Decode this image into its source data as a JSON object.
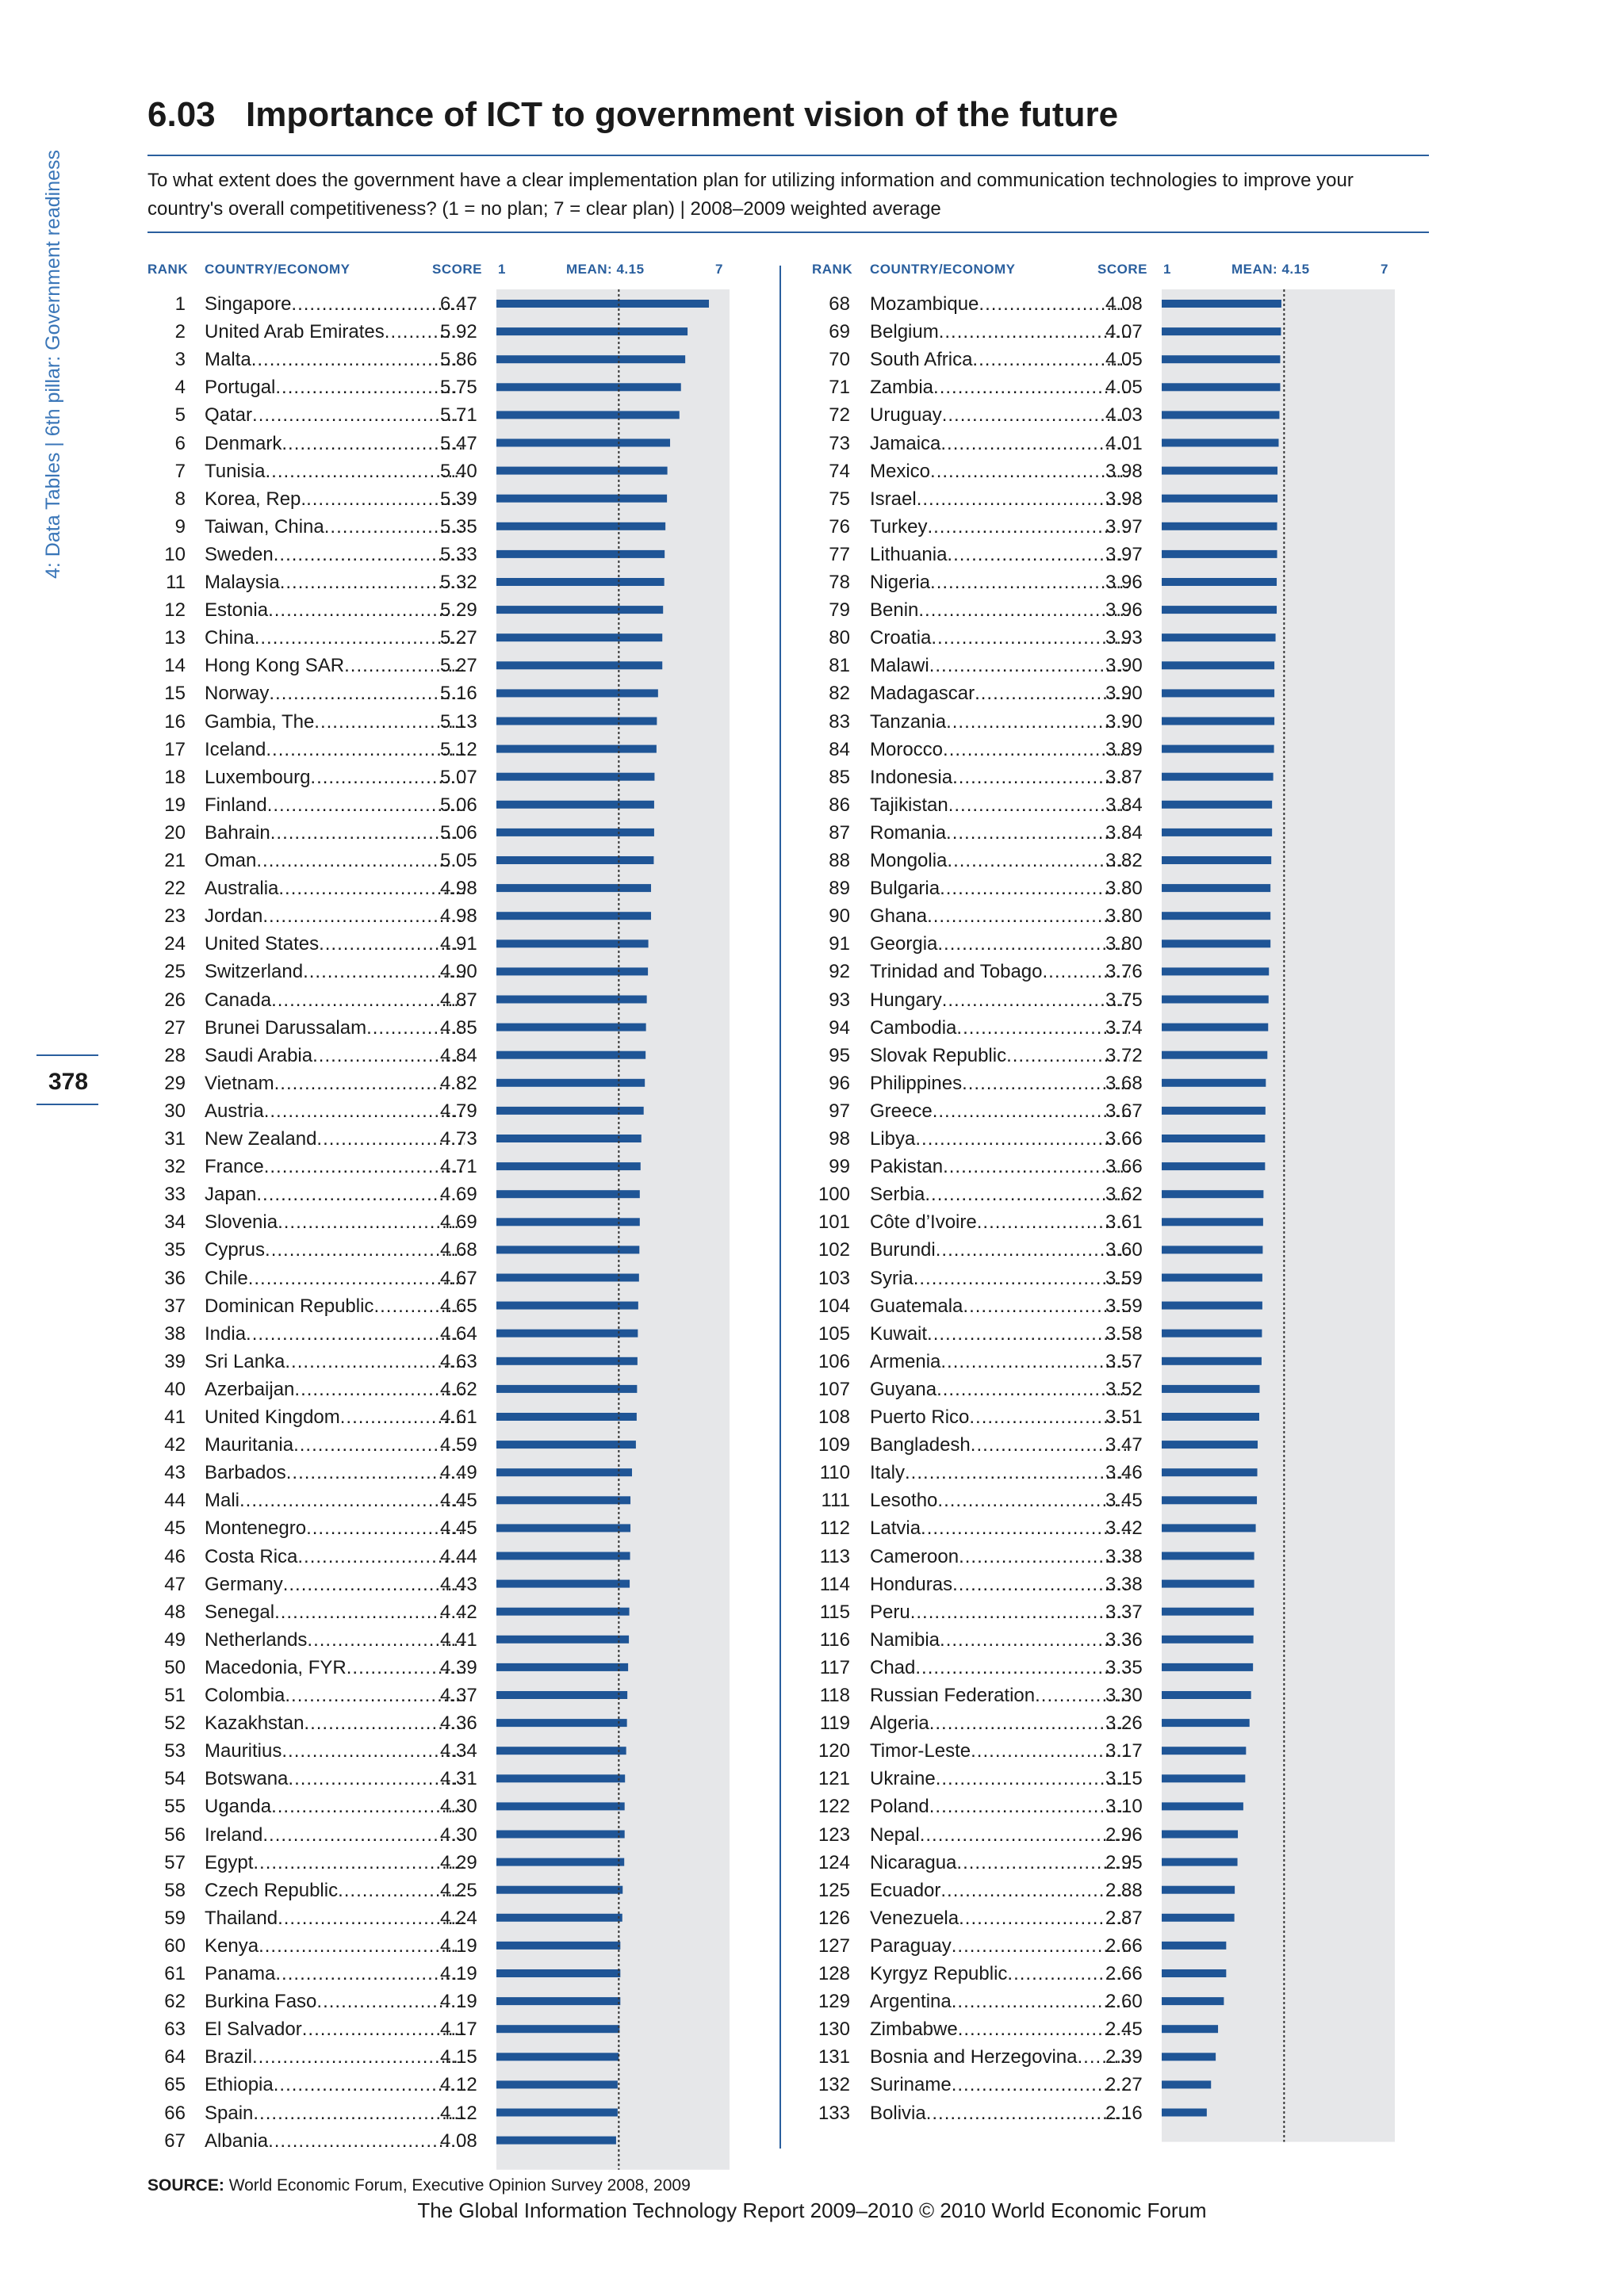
{
  "sidebar": {
    "label": "4: Data Tables  |  6th pillar: Government readiness"
  },
  "page": {
    "number": "378"
  },
  "header": {
    "section_number": "6.03",
    "title": "Importance of ICT to government vision of the future",
    "question": "To what extent does the government have a clear implementation plan for utilizing information and communication technologies to improve your country's overall competitiveness? (1 = no plan; 7 = clear plan)  |  2008–2009 weighted average"
  },
  "columns": {
    "rank": "RANK",
    "country": "COUNTRY/ECONOMY",
    "score": "SCORE",
    "scale_min": "1",
    "mean": "MEAN: 4.15",
    "scale_max": "7"
  },
  "source": {
    "label": "SOURCE:",
    "text": "World Economic Forum, Executive Opinion Survey 2008, 2009"
  },
  "footer": {
    "text": "The Global Information Technology Report 2009–2010 © 2010 World Economic Forum"
  },
  "colors": {
    "bar": "#1f5596",
    "track": "#e6e7e9",
    "mean_line": "#333333",
    "accent": "#2a5f9e"
  },
  "chart_data": {
    "type": "bar",
    "orientation": "horizontal",
    "xlim": [
      1,
      7
    ],
    "mean": 4.15,
    "grid": false,
    "left_column": [
      {
        "rank": 1,
        "country": "Singapore",
        "score": 6.47
      },
      {
        "rank": 2,
        "country": "United Arab Emirates",
        "score": 5.92
      },
      {
        "rank": 3,
        "country": "Malta",
        "score": 5.86
      },
      {
        "rank": 4,
        "country": "Portugal",
        "score": 5.75
      },
      {
        "rank": 5,
        "country": "Qatar",
        "score": 5.71
      },
      {
        "rank": 6,
        "country": "Denmark",
        "score": 5.47
      },
      {
        "rank": 7,
        "country": "Tunisia",
        "score": 5.4
      },
      {
        "rank": 8,
        "country": "Korea, Rep.",
        "score": 5.39
      },
      {
        "rank": 9,
        "country": "Taiwan, China",
        "score": 5.35
      },
      {
        "rank": 10,
        "country": "Sweden",
        "score": 5.33
      },
      {
        "rank": 11,
        "country": "Malaysia",
        "score": 5.32
      },
      {
        "rank": 12,
        "country": "Estonia",
        "score": 5.29
      },
      {
        "rank": 13,
        "country": "China",
        "score": 5.27
      },
      {
        "rank": 14,
        "country": "Hong Kong SAR",
        "score": 5.27
      },
      {
        "rank": 15,
        "country": "Norway",
        "score": 5.16
      },
      {
        "rank": 16,
        "country": "Gambia, The",
        "score": 5.13
      },
      {
        "rank": 17,
        "country": "Iceland",
        "score": 5.12
      },
      {
        "rank": 18,
        "country": "Luxembourg",
        "score": 5.07
      },
      {
        "rank": 19,
        "country": "Finland",
        "score": 5.06
      },
      {
        "rank": 20,
        "country": "Bahrain",
        "score": 5.06
      },
      {
        "rank": 21,
        "country": "Oman",
        "score": 5.05
      },
      {
        "rank": 22,
        "country": "Australia",
        "score": 4.98
      },
      {
        "rank": 23,
        "country": "Jordan",
        "score": 4.98
      },
      {
        "rank": 24,
        "country": "United States",
        "score": 4.91
      },
      {
        "rank": 25,
        "country": "Switzerland",
        "score": 4.9
      },
      {
        "rank": 26,
        "country": "Canada",
        "score": 4.87
      },
      {
        "rank": 27,
        "country": "Brunei Darussalam",
        "score": 4.85
      },
      {
        "rank": 28,
        "country": "Saudi Arabia",
        "score": 4.84
      },
      {
        "rank": 29,
        "country": "Vietnam",
        "score": 4.82
      },
      {
        "rank": 30,
        "country": "Austria",
        "score": 4.79
      },
      {
        "rank": 31,
        "country": "New Zealand",
        "score": 4.73
      },
      {
        "rank": 32,
        "country": "France",
        "score": 4.71
      },
      {
        "rank": 33,
        "country": "Japan",
        "score": 4.69
      },
      {
        "rank": 34,
        "country": "Slovenia",
        "score": 4.69
      },
      {
        "rank": 35,
        "country": "Cyprus",
        "score": 4.68
      },
      {
        "rank": 36,
        "country": "Chile",
        "score": 4.67
      },
      {
        "rank": 37,
        "country": "Dominican Republic",
        "score": 4.65
      },
      {
        "rank": 38,
        "country": "India",
        "score": 4.64
      },
      {
        "rank": 39,
        "country": "Sri Lanka",
        "score": 4.63
      },
      {
        "rank": 40,
        "country": "Azerbaijan",
        "score": 4.62
      },
      {
        "rank": 41,
        "country": "United Kingdom",
        "score": 4.61
      },
      {
        "rank": 42,
        "country": "Mauritania",
        "score": 4.59
      },
      {
        "rank": 43,
        "country": "Barbados",
        "score": 4.49
      },
      {
        "rank": 44,
        "country": "Mali",
        "score": 4.45
      },
      {
        "rank": 45,
        "country": "Montenegro",
        "score": 4.45
      },
      {
        "rank": 46,
        "country": "Costa Rica",
        "score": 4.44
      },
      {
        "rank": 47,
        "country": "Germany",
        "score": 4.43
      },
      {
        "rank": 48,
        "country": "Senegal",
        "score": 4.42
      },
      {
        "rank": 49,
        "country": "Netherlands",
        "score": 4.41
      },
      {
        "rank": 50,
        "country": "Macedonia, FYR",
        "score": 4.39
      },
      {
        "rank": 51,
        "country": "Colombia",
        "score": 4.37
      },
      {
        "rank": 52,
        "country": "Kazakhstan",
        "score": 4.36
      },
      {
        "rank": 53,
        "country": "Mauritius",
        "score": 4.34
      },
      {
        "rank": 54,
        "country": "Botswana",
        "score": 4.31
      },
      {
        "rank": 55,
        "country": "Uganda",
        "score": 4.3
      },
      {
        "rank": 56,
        "country": "Ireland",
        "score": 4.3
      },
      {
        "rank": 57,
        "country": "Egypt",
        "score": 4.29
      },
      {
        "rank": 58,
        "country": "Czech Republic",
        "score": 4.25
      },
      {
        "rank": 59,
        "country": "Thailand",
        "score": 4.24
      },
      {
        "rank": 60,
        "country": "Kenya",
        "score": 4.19
      },
      {
        "rank": 61,
        "country": "Panama",
        "score": 4.19
      },
      {
        "rank": 62,
        "country": "Burkina Faso",
        "score": 4.19
      },
      {
        "rank": 63,
        "country": "El Salvador",
        "score": 4.17
      },
      {
        "rank": 64,
        "country": "Brazil",
        "score": 4.15
      },
      {
        "rank": 65,
        "country": "Ethiopia",
        "score": 4.12
      },
      {
        "rank": 66,
        "country": "Spain",
        "score": 4.12
      },
      {
        "rank": 67,
        "country": "Albania",
        "score": 4.08
      }
    ],
    "right_column": [
      {
        "rank": 68,
        "country": "Mozambique",
        "score": 4.08
      },
      {
        "rank": 69,
        "country": "Belgium",
        "score": 4.07
      },
      {
        "rank": 70,
        "country": "South Africa",
        "score": 4.05
      },
      {
        "rank": 71,
        "country": "Zambia",
        "score": 4.05
      },
      {
        "rank": 72,
        "country": "Uruguay",
        "score": 4.03
      },
      {
        "rank": 73,
        "country": "Jamaica",
        "score": 4.01
      },
      {
        "rank": 74,
        "country": "Mexico",
        "score": 3.98
      },
      {
        "rank": 75,
        "country": "Israel",
        "score": 3.98
      },
      {
        "rank": 76,
        "country": "Turkey",
        "score": 3.97
      },
      {
        "rank": 77,
        "country": "Lithuania",
        "score": 3.97
      },
      {
        "rank": 78,
        "country": "Nigeria",
        "score": 3.96
      },
      {
        "rank": 79,
        "country": "Benin",
        "score": 3.96
      },
      {
        "rank": 80,
        "country": "Croatia",
        "score": 3.93
      },
      {
        "rank": 81,
        "country": "Malawi",
        "score": 3.9
      },
      {
        "rank": 82,
        "country": "Madagascar",
        "score": 3.9
      },
      {
        "rank": 83,
        "country": "Tanzania",
        "score": 3.9
      },
      {
        "rank": 84,
        "country": "Morocco",
        "score": 3.89
      },
      {
        "rank": 85,
        "country": "Indonesia",
        "score": 3.87
      },
      {
        "rank": 86,
        "country": "Tajikistan",
        "score": 3.84
      },
      {
        "rank": 87,
        "country": "Romania",
        "score": 3.84
      },
      {
        "rank": 88,
        "country": "Mongolia",
        "score": 3.82
      },
      {
        "rank": 89,
        "country": "Bulgaria",
        "score": 3.8
      },
      {
        "rank": 90,
        "country": "Ghana",
        "score": 3.8
      },
      {
        "rank": 91,
        "country": "Georgia",
        "score": 3.8
      },
      {
        "rank": 92,
        "country": "Trinidad and Tobago",
        "score": 3.76
      },
      {
        "rank": 93,
        "country": "Hungary",
        "score": 3.75
      },
      {
        "rank": 94,
        "country": "Cambodia",
        "score": 3.74
      },
      {
        "rank": 95,
        "country": "Slovak Republic",
        "score": 3.72
      },
      {
        "rank": 96,
        "country": "Philippines",
        "score": 3.68
      },
      {
        "rank": 97,
        "country": "Greece",
        "score": 3.67
      },
      {
        "rank": 98,
        "country": "Libya",
        "score": 3.66
      },
      {
        "rank": 99,
        "country": "Pakistan",
        "score": 3.66
      },
      {
        "rank": 100,
        "country": "Serbia",
        "score": 3.62
      },
      {
        "rank": 101,
        "country": "Côte d’Ivoire",
        "score": 3.61
      },
      {
        "rank": 102,
        "country": "Burundi",
        "score": 3.6
      },
      {
        "rank": 103,
        "country": "Syria",
        "score": 3.59
      },
      {
        "rank": 104,
        "country": "Guatemala",
        "score": 3.59
      },
      {
        "rank": 105,
        "country": "Kuwait",
        "score": 3.58
      },
      {
        "rank": 106,
        "country": "Armenia",
        "score": 3.57
      },
      {
        "rank": 107,
        "country": "Guyana",
        "score": 3.52
      },
      {
        "rank": 108,
        "country": "Puerto Rico",
        "score": 3.51
      },
      {
        "rank": 109,
        "country": "Bangladesh",
        "score": 3.47
      },
      {
        "rank": 110,
        "country": "Italy",
        "score": 3.46
      },
      {
        "rank": 111,
        "country": "Lesotho",
        "score": 3.45
      },
      {
        "rank": 112,
        "country": "Latvia",
        "score": 3.42
      },
      {
        "rank": 113,
        "country": "Cameroon",
        "score": 3.38
      },
      {
        "rank": 114,
        "country": "Honduras",
        "score": 3.38
      },
      {
        "rank": 115,
        "country": "Peru",
        "score": 3.37
      },
      {
        "rank": 116,
        "country": "Namibia",
        "score": 3.36
      },
      {
        "rank": 117,
        "country": "Chad",
        "score": 3.35
      },
      {
        "rank": 118,
        "country": "Russian Federation",
        "score": 3.3
      },
      {
        "rank": 119,
        "country": "Algeria",
        "score": 3.26
      },
      {
        "rank": 120,
        "country": "Timor-Leste",
        "score": 3.17
      },
      {
        "rank": 121,
        "country": "Ukraine",
        "score": 3.15
      },
      {
        "rank": 122,
        "country": "Poland",
        "score": 3.1
      },
      {
        "rank": 123,
        "country": "Nepal",
        "score": 2.96
      },
      {
        "rank": 124,
        "country": "Nicaragua",
        "score": 2.95
      },
      {
        "rank": 125,
        "country": "Ecuador",
        "score": 2.88
      },
      {
        "rank": 126,
        "country": "Venezuela",
        "score": 2.87
      },
      {
        "rank": 127,
        "country": "Paraguay",
        "score": 2.66
      },
      {
        "rank": 128,
        "country": "Kyrgyz Republic",
        "score": 2.66
      },
      {
        "rank": 129,
        "country": "Argentina",
        "score": 2.6
      },
      {
        "rank": 130,
        "country": "Zimbabwe",
        "score": 2.45
      },
      {
        "rank": 131,
        "country": "Bosnia and Herzegovina",
        "score": 2.39
      },
      {
        "rank": 132,
        "country": "Suriname",
        "score": 2.27
      },
      {
        "rank": 133,
        "country": "Bolivia",
        "score": 2.16
      }
    ]
  }
}
